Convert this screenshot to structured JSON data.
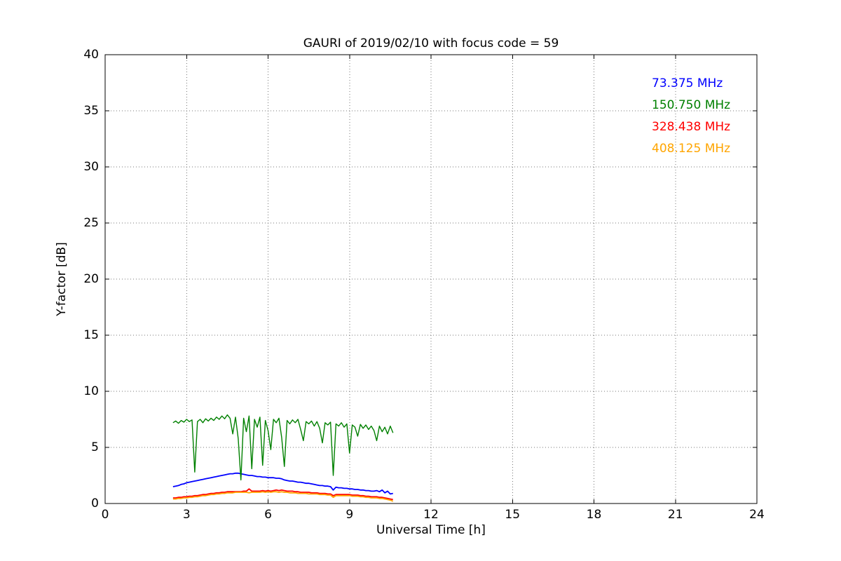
{
  "chart_data": {
    "type": "line",
    "title": "GAURI of 2019/02/10 with focus code = 59",
    "xlabel": "Universal Time [h]",
    "ylabel": "Y-factor [dB]",
    "xlim": [
      0,
      24
    ],
    "ylim": [
      0,
      40
    ],
    "x_ticks": [
      0,
      3,
      6,
      9,
      12,
      15,
      18,
      21,
      24
    ],
    "y_ticks": [
      0,
      5,
      10,
      15,
      20,
      25,
      30,
      35,
      40
    ],
    "grid": true,
    "grid_style": "dotted",
    "legend_position": "top-right",
    "x": [
      2.5,
      2.6,
      2.7,
      2.8,
      2.9,
      3.0,
      3.1,
      3.2,
      3.3,
      3.4,
      3.5,
      3.6,
      3.7,
      3.8,
      3.9,
      4.0,
      4.1,
      4.2,
      4.3,
      4.4,
      4.5,
      4.6,
      4.7,
      4.8,
      4.9,
      5.0,
      5.1,
      5.2,
      5.3,
      5.4,
      5.5,
      5.6,
      5.7,
      5.8,
      5.9,
      6.0,
      6.1,
      6.2,
      6.3,
      6.4,
      6.5,
      6.6,
      6.7,
      6.8,
      6.9,
      7.0,
      7.1,
      7.2,
      7.3,
      7.4,
      7.5,
      7.6,
      7.7,
      7.8,
      7.9,
      8.0,
      8.1,
      8.2,
      8.3,
      8.4,
      8.5,
      8.6,
      8.7,
      8.8,
      8.9,
      9.0,
      9.1,
      9.2,
      9.3,
      9.4,
      9.5,
      9.6,
      9.7,
      9.8,
      9.9,
      10.0,
      10.1,
      10.2,
      10.3,
      10.4,
      10.5,
      10.6
    ],
    "series": [
      {
        "label": "73.375 MHz",
        "color": "#0000ff",
        "line_width": 1.8,
        "values": [
          1.5,
          1.55,
          1.6,
          1.7,
          1.75,
          1.85,
          1.9,
          1.95,
          2.0,
          2.05,
          2.1,
          2.15,
          2.2,
          2.25,
          2.3,
          2.35,
          2.4,
          2.45,
          2.5,
          2.55,
          2.6,
          2.65,
          2.65,
          2.7,
          2.7,
          2.65,
          2.6,
          2.55,
          2.5,
          2.5,
          2.45,
          2.4,
          2.4,
          2.35,
          2.35,
          2.3,
          2.3,
          2.3,
          2.25,
          2.25,
          2.2,
          2.1,
          2.05,
          2.0,
          2.0,
          1.95,
          1.9,
          1.9,
          1.85,
          1.8,
          1.8,
          1.75,
          1.7,
          1.65,
          1.6,
          1.6,
          1.55,
          1.55,
          1.5,
          1.2,
          1.45,
          1.4,
          1.4,
          1.35,
          1.35,
          1.3,
          1.3,
          1.25,
          1.25,
          1.2,
          1.2,
          1.15,
          1.15,
          1.1,
          1.1,
          1.15,
          1.05,
          1.2,
          0.95,
          1.1,
          0.85,
          0.9
        ]
      },
      {
        "label": "150.750 MHz",
        "color": "#008000",
        "line_width": 1.4,
        "values": [
          7.2,
          7.35,
          7.15,
          7.4,
          7.25,
          7.5,
          7.3,
          7.45,
          2.8,
          7.3,
          7.5,
          7.2,
          7.55,
          7.35,
          7.6,
          7.4,
          7.7,
          7.5,
          7.8,
          7.55,
          7.9,
          7.6,
          6.2,
          7.7,
          5.8,
          2.1,
          7.6,
          6.4,
          7.8,
          3.1,
          7.5,
          6.8,
          7.7,
          3.4,
          7.4,
          6.5,
          4.8,
          7.5,
          7.2,
          7.6,
          5.9,
          3.3,
          7.4,
          7.1,
          7.45,
          7.2,
          7.5,
          6.6,
          5.6,
          7.3,
          7.1,
          7.35,
          6.9,
          7.3,
          6.7,
          5.4,
          7.2,
          7.0,
          7.25,
          2.5,
          7.1,
          6.9,
          7.2,
          6.8,
          7.1,
          4.5,
          7.0,
          6.8,
          6.0,
          7.05,
          6.7,
          7.0,
          6.6,
          6.9,
          6.5,
          5.6,
          6.9,
          6.4,
          6.8,
          6.2,
          6.9,
          6.3
        ]
      },
      {
        "label": "328.438 MHz",
        "color": "#ff0000",
        "line_width": 1.8,
        "values": [
          0.5,
          0.5,
          0.55,
          0.55,
          0.6,
          0.6,
          0.65,
          0.65,
          0.7,
          0.7,
          0.75,
          0.8,
          0.8,
          0.85,
          0.9,
          0.9,
          0.95,
          0.95,
          1.0,
          1.0,
          1.05,
          1.05,
          1.05,
          1.05,
          1.05,
          1.05,
          1.1,
          1.1,
          1.3,
          1.1,
          1.1,
          1.1,
          1.1,
          1.15,
          1.1,
          1.15,
          1.1,
          1.15,
          1.2,
          1.15,
          1.2,
          1.15,
          1.1,
          1.1,
          1.1,
          1.05,
          1.05,
          1.0,
          1.0,
          1.0,
          1.0,
          0.95,
          0.95,
          0.95,
          0.9,
          0.9,
          0.9,
          0.85,
          0.85,
          0.7,
          0.8,
          0.8,
          0.8,
          0.8,
          0.8,
          0.8,
          0.75,
          0.75,
          0.75,
          0.7,
          0.7,
          0.65,
          0.65,
          0.6,
          0.6,
          0.6,
          0.55,
          0.55,
          0.5,
          0.45,
          0.4,
          0.35
        ]
      },
      {
        "label": "408.125 MHz",
        "color": "#ffa500",
        "line_width": 1.8,
        "values": [
          0.4,
          0.4,
          0.45,
          0.45,
          0.5,
          0.5,
          0.55,
          0.55,
          0.6,
          0.6,
          0.65,
          0.7,
          0.7,
          0.75,
          0.8,
          0.8,
          0.85,
          0.85,
          0.9,
          0.9,
          0.95,
          0.95,
          0.95,
          1.0,
          1.0,
          1.0,
          1.0,
          1.0,
          0.95,
          1.0,
          1.0,
          1.0,
          1.0,
          1.05,
          1.0,
          1.05,
          1.0,
          1.05,
          1.05,
          1.0,
          1.05,
          1.0,
          1.0,
          0.95,
          0.95,
          0.95,
          0.9,
          0.9,
          0.9,
          0.9,
          0.85,
          0.85,
          0.85,
          0.85,
          0.8,
          0.8,
          0.8,
          0.75,
          0.75,
          0.55,
          0.7,
          0.7,
          0.7,
          0.7,
          0.7,
          0.7,
          0.65,
          0.65,
          0.65,
          0.6,
          0.6,
          0.55,
          0.55,
          0.5,
          0.5,
          0.5,
          0.45,
          0.45,
          0.4,
          0.35,
          0.3,
          0.2
        ]
      }
    ]
  }
}
